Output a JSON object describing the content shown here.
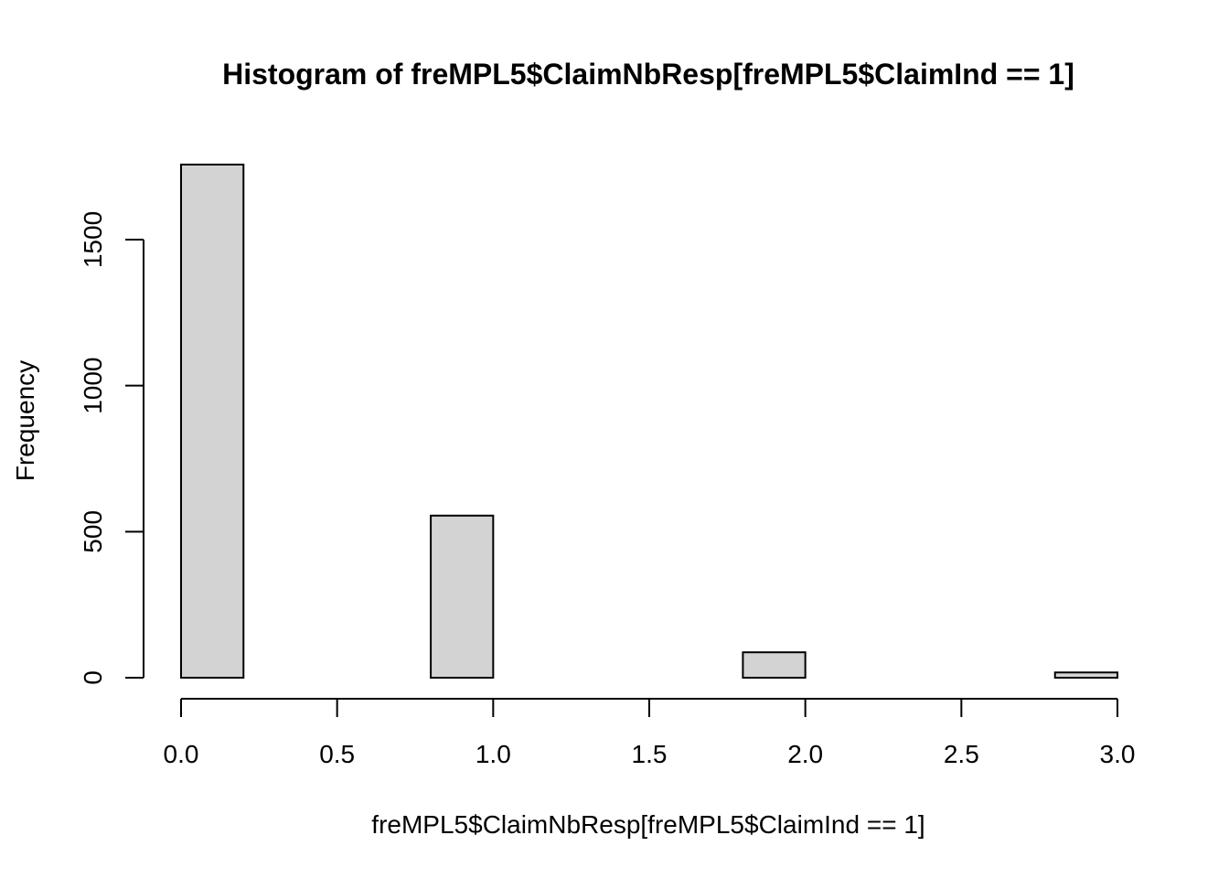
{
  "chart_data": {
    "type": "bar",
    "title": "Histogram of freMPL5$ClaimNbResp[freMPL5$ClaimInd == 1]",
    "xlabel": "freMPL5$ClaimNbResp[freMPL5$ClaimInd == 1]",
    "ylabel": "Frequency",
    "xlim": [
      0,
      3
    ],
    "ylim": [
      0,
      1760
    ],
    "x_ticks": [
      "0.0",
      "0.5",
      "1.0",
      "1.5",
      "2.0",
      "2.5",
      "3.0"
    ],
    "y_ticks": [
      "0",
      "500",
      "1000",
      "1500"
    ],
    "bin_edges": [
      0,
      0.2,
      0.4,
      0.6,
      0.8,
      1.0,
      1.2,
      1.4,
      1.6,
      1.8,
      2.0,
      2.2,
      2.4,
      2.6,
      2.8,
      3.0
    ],
    "values": [
      1757,
      0,
      0,
      0,
      555,
      0,
      0,
      0,
      0,
      87,
      0,
      0,
      0,
      0,
      18
    ],
    "grid": false,
    "bar_color": "#d3d3d3",
    "border_color": "#000000"
  }
}
